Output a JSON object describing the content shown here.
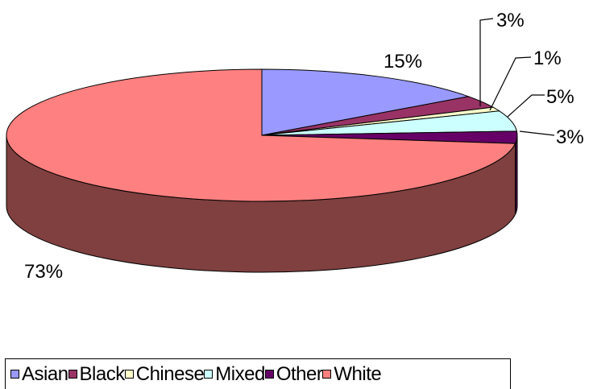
{
  "chart_data": {
    "type": "pie",
    "style": "3d",
    "categories": [
      "Asian",
      "Black",
      "Chinese",
      "Mixed",
      "Other",
      "White"
    ],
    "values": [
      15,
      3,
      1,
      5,
      3,
      73
    ],
    "labels": [
      "15%",
      "3%",
      "1%",
      "5%",
      "3%",
      "73%"
    ],
    "colors": [
      "#9999ff",
      "#993366",
      "#ffffcc",
      "#ccffff",
      "#660066",
      "#ff8080"
    ],
    "side_colors": [
      "#5c5c99",
      "#5c1f3d",
      "#99997a",
      "#7a9999",
      "#3d003d",
      "#7f403f"
    ],
    "legend_position": "bottom",
    "legend": [
      {
        "name": "Asian",
        "color": "#9999ff"
      },
      {
        "name": "Black",
        "color": "#993366"
      },
      {
        "name": "Chinese",
        "color": "#ffffcc"
      },
      {
        "name": "Mixed",
        "color": "#ccffff"
      },
      {
        "name": "Other",
        "color": "#660066"
      },
      {
        "name": "White",
        "color": "#ff8080"
      }
    ]
  }
}
